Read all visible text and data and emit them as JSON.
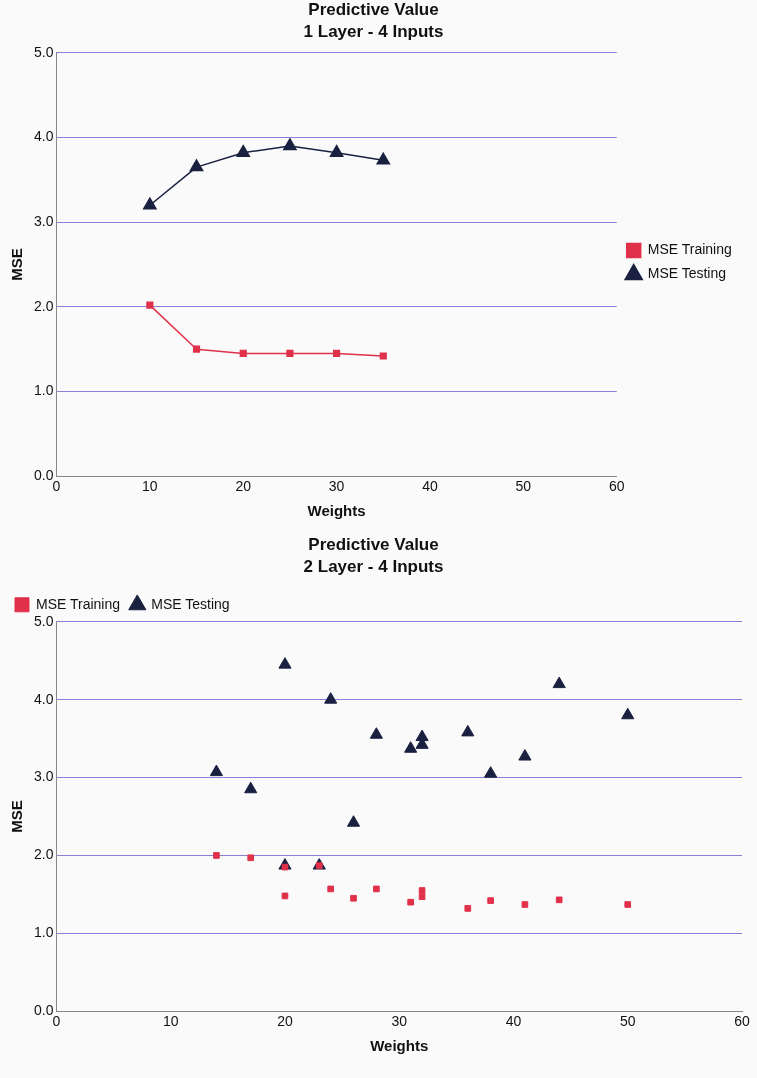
{
  "chart_data": [
    {
      "type": "line",
      "title": "Predictive Value",
      "subtitle": "1 Layer - 4 Inputs",
      "xlabel": "Weights",
      "ylabel": "MSE",
      "xlim": [
        0,
        60
      ],
      "xticks": [
        0,
        10,
        20,
        30,
        40,
        50,
        60
      ],
      "ylim": [
        0,
        5
      ],
      "yticks": [
        {
          "value": 0,
          "label": "0.0"
        },
        {
          "value": 1,
          "label": "1.0"
        },
        {
          "value": 2,
          "label": "2.0"
        },
        {
          "value": 3,
          "label": "3.0"
        },
        {
          "value": 4,
          "label": "4.0"
        },
        {
          "value": 5,
          "label": "5.0"
        }
      ],
      "grid": "y",
      "legend": "right",
      "x": [
        10,
        15,
        20,
        25,
        30,
        35
      ],
      "series": [
        {
          "name": "MSE Training",
          "color": "#e0304a",
          "marker": "square",
          "values": [
            2.02,
            1.5,
            1.45,
            1.45,
            1.45,
            1.42
          ]
        },
        {
          "name": "MSE Testing",
          "color": "#1a2040",
          "marker": "triangle",
          "values": [
            3.2,
            3.65,
            3.82,
            3.9,
            3.82,
            3.73
          ]
        }
      ]
    },
    {
      "type": "scatter",
      "title": "Predictive Value",
      "subtitle": "2 Layer - 4 Inputs",
      "xlabel": "Weights",
      "ylabel": "MSE",
      "xlim": [
        0,
        60
      ],
      "xticks": [
        0,
        10,
        20,
        30,
        40,
        50,
        60
      ],
      "ylim": [
        0,
        5
      ],
      "yticks": [
        {
          "value": 0,
          "label": "0.0"
        },
        {
          "value": 1,
          "label": "1.0"
        },
        {
          "value": 2,
          "label": "2.0"
        },
        {
          "value": 3,
          "label": "3.0"
        },
        {
          "value": 4,
          "label": "4.0"
        },
        {
          "value": 5,
          "label": "5.0"
        }
      ],
      "grid": "y",
      "legend": "top left",
      "series": [
        {
          "name": "MSE Training",
          "color": "#e0304a",
          "marker": "square",
          "x": [
            14,
            17,
            20,
            20,
            23,
            24,
            26,
            28,
            31,
            32,
            32,
            36,
            38,
            41,
            44,
            50
          ],
          "values": [
            2.0,
            1.97,
            1.85,
            1.48,
            1.87,
            1.57,
            1.45,
            1.57,
            1.4,
            1.55,
            1.47,
            1.32,
            1.42,
            1.37,
            1.43,
            1.37
          ]
        },
        {
          "name": "MSE Testing",
          "color": "#1a2040",
          "marker": "triangle",
          "x": [
            14,
            17,
            20,
            20,
            23,
            24,
            26,
            28,
            31,
            32,
            32,
            36,
            38,
            41,
            44,
            50
          ],
          "values": [
            3.07,
            2.85,
            4.45,
            1.87,
            1.87,
            4.0,
            2.42,
            3.55,
            3.37,
            3.42,
            3.52,
            3.58,
            3.05,
            3.27,
            4.2,
            3.8
          ]
        }
      ]
    }
  ]
}
